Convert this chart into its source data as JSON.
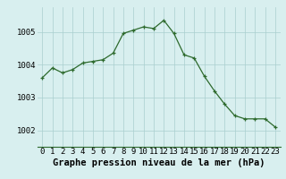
{
  "x": [
    0,
    1,
    2,
    3,
    4,
    5,
    6,
    7,
    8,
    9,
    10,
    11,
    12,
    13,
    14,
    15,
    16,
    17,
    18,
    19,
    20,
    21,
    22,
    23
  ],
  "y": [
    1003.6,
    1003.9,
    1003.75,
    1003.85,
    1004.05,
    1004.1,
    1004.15,
    1004.35,
    1004.95,
    1005.05,
    1005.15,
    1005.1,
    1005.35,
    1004.95,
    1004.3,
    1004.2,
    1003.65,
    1003.2,
    1002.8,
    1002.45,
    1002.35,
    1002.35,
    1002.35,
    1002.1
  ],
  "line_color": "#2d6a2d",
  "marker": "+",
  "bg_color": "#d8efef",
  "grid_color": "#aacece",
  "xlabel": "Graphe pression niveau de la mer (hPa)",
  "xlabel_fontsize": 7.5,
  "tick_fontsize": 6.5,
  "ylim": [
    1001.5,
    1005.75
  ],
  "yticks": [
    1002,
    1003,
    1004,
    1005
  ],
  "xticks": [
    0,
    1,
    2,
    3,
    4,
    5,
    6,
    7,
    8,
    9,
    10,
    11,
    12,
    13,
    14,
    15,
    16,
    17,
    18,
    19,
    20,
    21,
    22,
    23
  ]
}
